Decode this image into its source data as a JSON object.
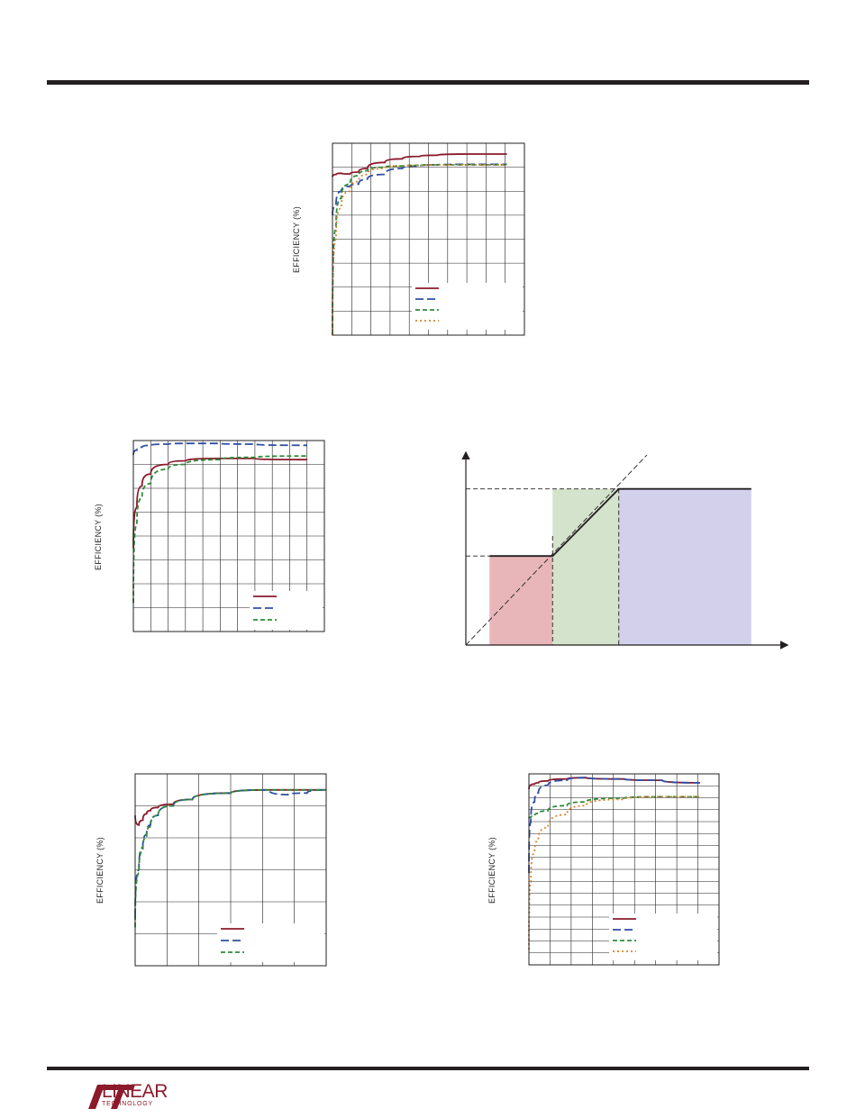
{
  "branding": {
    "logo_word": "LINEAR",
    "logo_sub": "TECHNOLOGY"
  },
  "chart_data": [
    {
      "type": "line",
      "ylabel": "EFFICIENCY (%)",
      "x": [
        0.0,
        0.02,
        0.05,
        0.1,
        0.15,
        0.2,
        0.3,
        0.4,
        0.5,
        0.6,
        0.8,
        1.0
      ],
      "ylim": [
        0,
        8
      ],
      "xlim": [
        0,
        1.1
      ],
      "grid": true,
      "legend_placement": "bottom-right",
      "series": [
        {
          "color": "#8b1a2b",
          "dash": "none",
          "values": [
            6.6,
            6.7,
            6.75,
            6.72,
            6.8,
            6.95,
            7.2,
            7.35,
            7.45,
            7.5,
            7.55,
            7.55
          ]
        },
        {
          "color": "#2e4fa3",
          "dash": "9,4",
          "values": [
            5.0,
            5.4,
            6.0,
            6.2,
            6.3,
            6.5,
            6.7,
            6.95,
            7.05,
            7.1,
            7.12,
            7.12
          ]
        },
        {
          "color": "#2e8b3a",
          "dash": "5,3",
          "values": [
            0.0,
            4.5,
            5.7,
            6.3,
            6.65,
            6.85,
            7.0,
            7.05,
            7.08,
            7.1,
            7.1,
            7.1
          ]
        },
        {
          "color": "#d9822b",
          "dash": "2,3",
          "values": [
            0.0,
            4.0,
            5.3,
            6.0,
            6.4,
            6.7,
            6.95,
            7.05,
            7.07,
            7.1,
            7.1,
            7.1
          ]
        }
      ]
    },
    {
      "type": "line",
      "ylabel": "EFFICIENCY (%)",
      "x": [
        0.0,
        0.02,
        0.05,
        0.1,
        0.2,
        0.3,
        0.5,
        0.7,
        1.0
      ],
      "ylim": [
        0,
        8
      ],
      "xlim": [
        0,
        1.1
      ],
      "grid": true,
      "legend_placement": "bottom-right",
      "series": [
        {
          "color": "#8b1a2b",
          "dash": "none",
          "values": [
            3.5,
            5.2,
            6.1,
            6.6,
            7.0,
            7.15,
            7.25,
            7.25,
            7.2
          ]
        },
        {
          "color": "#2e4fa3",
          "dash": "9,4",
          "values": [
            7.4,
            7.6,
            7.72,
            7.8,
            7.85,
            7.88,
            7.88,
            7.85,
            7.8
          ]
        },
        {
          "color": "#2e8b3a",
          "dash": "5,3",
          "values": [
            1.2,
            4.5,
            5.6,
            6.2,
            6.8,
            7.0,
            7.2,
            7.3,
            7.35
          ]
        }
      ]
    },
    {
      "type": "area",
      "x": [
        0,
        10
      ],
      "ylim": [
        0,
        10
      ],
      "grid": false,
      "regions": [
        {
          "x0": 0.75,
          "x1": 2.75,
          "y": 5.7,
          "color": "#e8b6b8"
        },
        {
          "x0": 2.75,
          "x1": 4.85,
          "y": 10.0,
          "color": "#d3e3cc"
        },
        {
          "x0": 4.85,
          "x1": 9.05,
          "y": 10.0,
          "color": "#d3d0ec"
        }
      ],
      "transfer_curve": {
        "x": [
          0.75,
          2.75,
          4.85,
          9.05
        ],
        "y": [
          5.7,
          5.7,
          10.0,
          10.0
        ]
      },
      "unity_line": {
        "x": [
          0,
          5.8
        ],
        "y": [
          0,
          12.0
        ]
      }
    },
    {
      "type": "line",
      "ylabel": "EFFICIENCY (%)",
      "x": [
        0.0,
        0.02,
        0.04,
        0.06,
        0.08,
        0.12,
        0.2,
        0.3,
        0.5,
        0.7,
        0.8,
        0.9,
        1.0
      ],
      "ylim": [
        0,
        6
      ],
      "xlim": [
        0,
        1.0
      ],
      "grid": true,
      "legend_placement": "bottom-right",
      "series": [
        {
          "color": "#8b1a2b",
          "dash": "none",
          "values": [
            4.7,
            4.4,
            4.55,
            4.75,
            4.85,
            4.95,
            5.05,
            5.2,
            5.4,
            5.5,
            5.5,
            5.5,
            5.5
          ]
        },
        {
          "color": "#2e4fa3",
          "dash": "9,4",
          "values": [
            1.5,
            3.0,
            3.7,
            4.1,
            4.4,
            4.7,
            5.0,
            5.2,
            5.4,
            5.5,
            5.35,
            5.4,
            5.5
          ]
        },
        {
          "color": "#2e8b3a",
          "dash": "5,3",
          "values": [
            1.2,
            2.9,
            3.6,
            4.05,
            4.35,
            4.7,
            5.0,
            5.2,
            5.4,
            5.5,
            5.5,
            5.5,
            5.5
          ]
        }
      ]
    },
    {
      "type": "line",
      "ylabel": "EFFICIENCY (%)",
      "x": [
        0.0,
        0.01,
        0.03,
        0.05,
        0.1,
        0.2,
        0.3,
        0.5,
        0.7,
        0.9
      ],
      "ylim": [
        0,
        15
      ],
      "xlim": [
        0,
        1.0
      ],
      "grid": true,
      "legend_placement": "bottom-right",
      "series": [
        {
          "color": "#8b1a2b",
          "dash": "none",
          "values": [
            13.8,
            14.1,
            14.2,
            14.3,
            14.45,
            14.6,
            14.7,
            14.6,
            14.5,
            14.3
          ]
        },
        {
          "color": "#2e4fa3",
          "dash": "9,4",
          "values": [
            7.2,
            11.2,
            12.8,
            13.5,
            14.1,
            14.5,
            14.7,
            14.6,
            14.5,
            14.3
          ]
        },
        {
          "color": "#2e8b3a",
          "dash": "5,3",
          "values": [
            11.5,
            11.6,
            11.7,
            11.9,
            12.1,
            12.5,
            12.8,
            13.1,
            13.2,
            13.2
          ]
        },
        {
          "color": "#d9822b",
          "dash": "2,3",
          "values": [
            1.2,
            6.5,
            8.8,
            9.8,
            10.8,
            11.8,
            12.5,
            13.0,
            13.2,
            13.2
          ]
        }
      ]
    }
  ]
}
